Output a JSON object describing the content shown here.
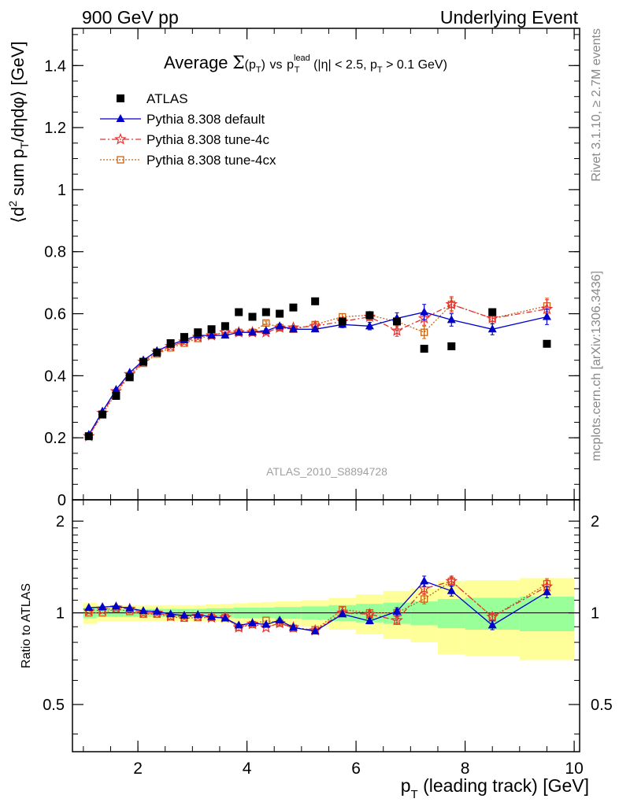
{
  "header": {
    "left": "900 GeV pp",
    "right": "Underlying Event"
  },
  "side_labels": {
    "rivet": "Rivet 3.1.10, ≥ 2.7M events",
    "mcplots": "mcplots.cern.ch [arXiv:1306.3436]"
  },
  "chart_data": [
    {
      "type": "scatter",
      "title": "Average Σ(p_T) vs p_T^lead (|η| < 2.5, p_T > 0.1 GeV)",
      "title_main": "Average",
      "title_rest": "vs",
      "title_cut": "(|η| < 2.5, p",
      "title_cut2": " > 0.1 GeV)",
      "ylabel": "⟨d² sum p_T/dηdφ⟩ [GeV]",
      "watermark": "ATLAS_2010_S8894728",
      "xlim": [
        0.8,
        10.1
      ],
      "ylim": [
        0,
        1.52
      ],
      "yticks": [
        0,
        0.2,
        0.4,
        0.6,
        0.8,
        1,
        1.2,
        1.4
      ],
      "ytick_labels": [
        "0",
        "0.2",
        "0.4",
        "0.6",
        "0.8",
        "1",
        "1.2",
        "1.4"
      ],
      "legend_position": "top-left",
      "x": [
        1.1,
        1.35,
        1.6,
        1.85,
        2.1,
        2.35,
        2.6,
        2.85,
        3.1,
        3.35,
        3.6,
        3.85,
        4.1,
        4.35,
        4.6,
        4.85,
        5.25,
        5.75,
        6.25,
        6.75,
        7.25,
        7.75,
        8.5,
        9.5
      ],
      "series": [
        {
          "name": "ATLAS",
          "style": "data",
          "color": "#000000",
          "values": [
            0.205,
            0.275,
            0.335,
            0.395,
            0.445,
            0.475,
            0.505,
            0.525,
            0.54,
            0.55,
            0.56,
            0.605,
            0.59,
            0.605,
            0.6,
            0.62,
            0.64,
            0.575,
            0.595,
            0.575,
            0.487,
            0.495,
            0.605,
            0.503
          ]
        },
        {
          "name": "Pythia 8.308 default",
          "style": "default",
          "color": "#0000cc",
          "values": [
            0.21,
            0.285,
            0.355,
            0.41,
            0.45,
            0.48,
            0.5,
            0.515,
            0.53,
            0.53,
            0.53,
            0.54,
            0.54,
            0.545,
            0.56,
            0.55,
            0.55,
            0.565,
            0.56,
            0.585,
            0.605,
            0.58,
            0.55,
            0.59
          ],
          "errors": [
            0.003,
            0.003,
            0.003,
            0.003,
            0.003,
            0.003,
            0.004,
            0.004,
            0.004,
            0.005,
            0.005,
            0.005,
            0.006,
            0.006,
            0.007,
            0.007,
            0.008,
            0.01,
            0.012,
            0.018,
            0.025,
            0.02,
            0.018,
            0.025
          ]
        },
        {
          "name": "Pythia 8.308 tune-4c",
          "style": "tune4c",
          "color": "#e83030",
          "values": [
            0.205,
            0.28,
            0.35,
            0.405,
            0.445,
            0.475,
            0.495,
            0.51,
            0.525,
            0.53,
            0.54,
            0.54,
            0.54,
            0.54,
            0.555,
            0.555,
            0.56,
            0.575,
            0.59,
            0.545,
            0.585,
            0.63,
            0.585,
            0.615
          ],
          "errors": [
            0.003,
            0.003,
            0.003,
            0.003,
            0.003,
            0.003,
            0.004,
            0.004,
            0.004,
            0.005,
            0.005,
            0.005,
            0.006,
            0.006,
            0.007,
            0.007,
            0.008,
            0.01,
            0.012,
            0.018,
            0.022,
            0.025,
            0.018,
            0.03
          ]
        },
        {
          "name": "Pythia 8.308 tune-4cx",
          "style": "tune4cx",
          "color": "#c86414",
          "values": [
            0.205,
            0.275,
            0.345,
            0.4,
            0.44,
            0.47,
            0.49,
            0.505,
            0.52,
            0.53,
            0.54,
            0.54,
            0.54,
            0.57,
            0.555,
            0.55,
            0.565,
            0.59,
            0.595,
            0.575,
            0.54,
            0.63,
            0.585,
            0.625
          ],
          "errors": [
            0.003,
            0.003,
            0.003,
            0.003,
            0.003,
            0.003,
            0.004,
            0.004,
            0.004,
            0.005,
            0.005,
            0.005,
            0.006,
            0.006,
            0.007,
            0.007,
            0.008,
            0.01,
            0.012,
            0.015,
            0.02,
            0.02,
            0.018,
            0.025
          ]
        }
      ]
    },
    {
      "type": "scatter",
      "title": "",
      "ylabel": "Ratio to ATLAS",
      "xlabel": "p_T (leading track) [GeV]",
      "xlabel_main": "p",
      "xlabel_rest": " (leading track) [GeV]",
      "xlim": [
        0.8,
        10.1
      ],
      "ylim": [
        0.35,
        2.35
      ],
      "log_y": true,
      "xticks": [
        2,
        4,
        6,
        8,
        10
      ],
      "xtick_labels": [
        "2",
        "4",
        "6",
        "8",
        "10"
      ],
      "yticks": [
        0.5,
        1,
        2
      ],
      "ytick_labels": [
        "0.5",
        "1",
        "2"
      ],
      "bands": {
        "x_edges": [
          1.0,
          1.25,
          1.5,
          1.75,
          2.0,
          2.25,
          2.5,
          2.75,
          3.0,
          3.25,
          3.5,
          3.75,
          4.0,
          4.25,
          4.5,
          4.75,
          5.0,
          5.5,
          6.0,
          6.5,
          7.0,
          7.5,
          8.0,
          9.0,
          10.0
        ],
        "green_half": [
          0.04,
          0.03,
          0.03,
          0.03,
          0.03,
          0.03,
          0.03,
          0.03,
          0.03,
          0.035,
          0.035,
          0.04,
          0.04,
          0.04,
          0.045,
          0.045,
          0.05,
          0.06,
          0.07,
          0.08,
          0.09,
          0.11,
          0.12,
          0.13
        ],
        "yellow_half": [
          0.08,
          0.06,
          0.06,
          0.06,
          0.06,
          0.06,
          0.06,
          0.06,
          0.06,
          0.065,
          0.07,
          0.075,
          0.08,
          0.085,
          0.09,
          0.09,
          0.1,
          0.12,
          0.15,
          0.18,
          0.2,
          0.27,
          0.28,
          0.3
        ],
        "green_color": "#99ff99",
        "yellow_color": "#ffff99"
      },
      "series": [
        {
          "name": "Pythia 8.308 default",
          "style": "default",
          "color": "#0000cc",
          "values": [
            1.04,
            1.045,
            1.05,
            1.035,
            1.015,
            1.01,
            0.99,
            0.98,
            0.985,
            0.97,
            0.96,
            0.91,
            0.925,
            0.915,
            0.945,
            0.895,
            0.87,
            0.99,
            0.94,
            1.01,
            1.27,
            1.18,
            0.91,
            1.17
          ],
          "errors": [
            0.01,
            0.01,
            0.01,
            0.01,
            0.01,
            0.01,
            0.01,
            0.01,
            0.01,
            0.01,
            0.01,
            0.01,
            0.01,
            0.01,
            0.012,
            0.012,
            0.012,
            0.018,
            0.02,
            0.03,
            0.05,
            0.045,
            0.03,
            0.05
          ]
        },
        {
          "name": "Pythia 8.308 tune-4c",
          "style": "tune4c",
          "color": "#e83030",
          "values": [
            1.015,
            1.02,
            1.04,
            1.03,
            1.0,
            1.0,
            0.975,
            0.97,
            0.975,
            0.965,
            0.965,
            0.895,
            0.92,
            0.895,
            0.925,
            0.895,
            0.875,
            1.0,
            0.99,
            0.945,
            1.2,
            1.27,
            0.97,
            1.22
          ],
          "errors": [
            0.01,
            0.01,
            0.01,
            0.01,
            0.01,
            0.01,
            0.01,
            0.01,
            0.01,
            0.01,
            0.01,
            0.01,
            0.01,
            0.01,
            0.012,
            0.012,
            0.012,
            0.018,
            0.02,
            0.03,
            0.045,
            0.05,
            0.03,
            0.06
          ]
        },
        {
          "name": "Pythia 8.308 tune-4cx",
          "style": "tune4cx",
          "color": "#c86414",
          "values": [
            1.0,
            1.0,
            1.03,
            1.01,
            0.99,
            0.99,
            0.97,
            0.96,
            0.965,
            0.965,
            0.965,
            0.895,
            0.915,
            0.945,
            0.925,
            0.89,
            0.88,
            1.025,
            1.0,
            1.0,
            1.11,
            1.27,
            0.97,
            1.245
          ],
          "errors": [
            0.01,
            0.01,
            0.01,
            0.01,
            0.01,
            0.01,
            0.01,
            0.01,
            0.01,
            0.01,
            0.01,
            0.01,
            0.01,
            0.01,
            0.012,
            0.012,
            0.012,
            0.018,
            0.02,
            0.03,
            0.04,
            0.04,
            0.03,
            0.05
          ]
        }
      ]
    }
  ]
}
